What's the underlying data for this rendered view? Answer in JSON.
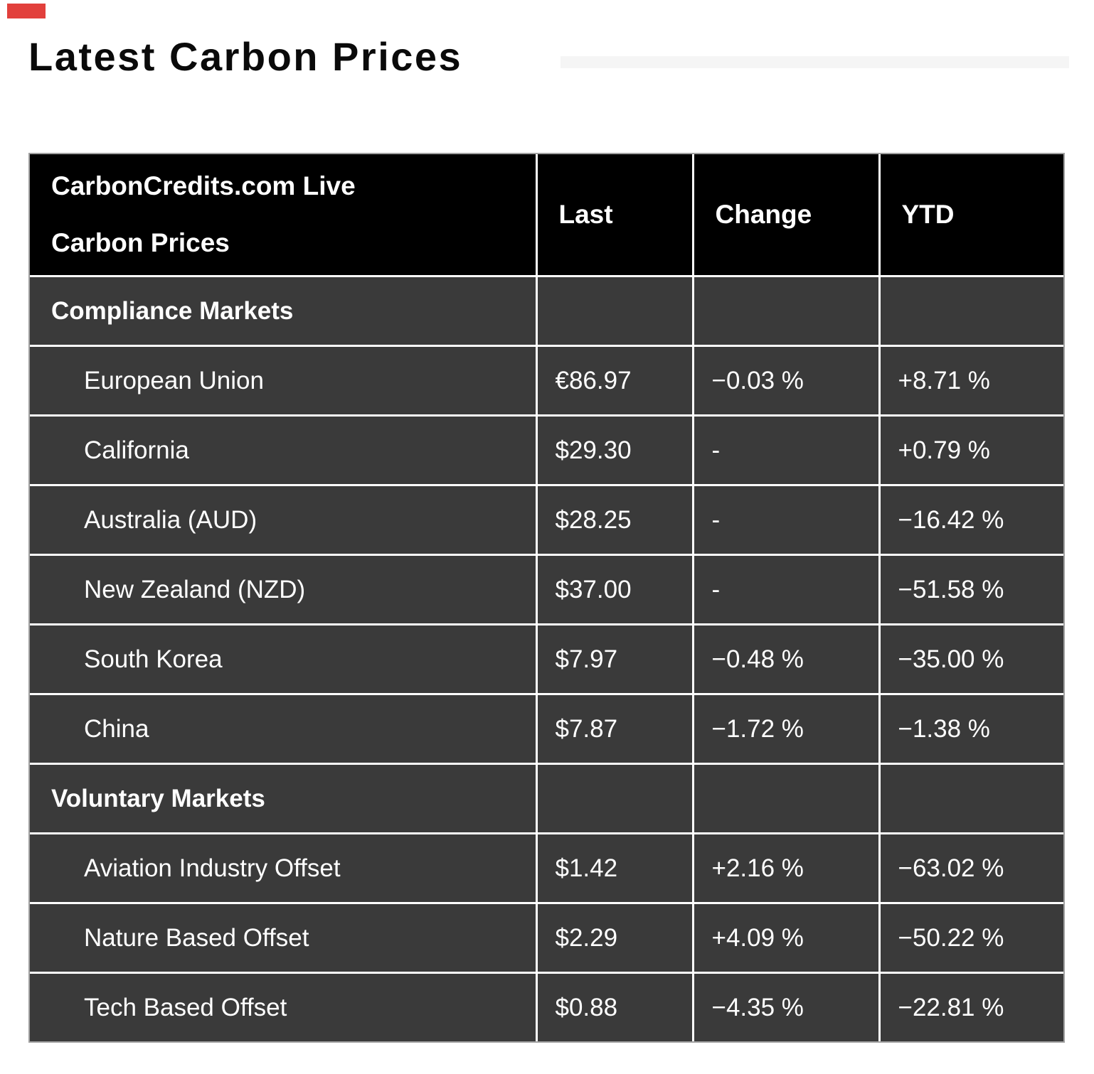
{
  "page": {
    "title": "Latest Carbon Prices",
    "marker_color": "#e2403c",
    "heading_bar_color": "#f5f5f5"
  },
  "table": {
    "header": {
      "market_label": "CarbonCredits.com Live Carbon Prices",
      "columns": [
        "Last",
        "Change",
        "YTD"
      ]
    },
    "colors": {
      "header_bg": "#000000",
      "row_bg": "#3a3a3a",
      "border": "#ffffff",
      "outer_border": "#a0a0a0",
      "text": "#ffffff",
      "up": "#2fb34a",
      "down": "#d32f2f"
    },
    "sections": [
      {
        "label": "Compliance Markets",
        "rows": [
          {
            "name": "European Union",
            "last": "€86.97",
            "change": "−0.03 %",
            "ytd": "+8.71 %"
          },
          {
            "name": "California",
            "last": "$29.30",
            "change": "-",
            "ytd": "+0.79 %"
          },
          {
            "name": "Australia (AUD)",
            "last": "$28.25",
            "change": "-",
            "ytd": "−16.42 %"
          },
          {
            "name": "New Zealand (NZD)",
            "last": "$37.00",
            "change": "-",
            "ytd": "−51.58 %"
          },
          {
            "name": "South Korea",
            "last": "$7.97",
            "change": "−0.48 %",
            "ytd": "−35.00 %"
          },
          {
            "name": "China",
            "last": "$7.87",
            "change": "−1.72 %",
            "ytd": "−1.38 %"
          }
        ]
      },
      {
        "label": "Voluntary Markets",
        "rows": [
          {
            "name": "Aviation Industry Offset",
            "last": "$1.42",
            "change": "+2.16 %",
            "ytd": "−63.02 %"
          },
          {
            "name": "Nature Based Offset",
            "last": "$2.29",
            "change": "+4.09 %",
            "ytd": "−50.22 %"
          },
          {
            "name": "Tech Based Offset",
            "last": "$0.88",
            "change": "−4.35 %",
            "ytd": "−22.81 %"
          }
        ]
      }
    ]
  },
  "chart_data": {
    "type": "table",
    "title": "Latest Carbon Prices",
    "columns": [
      "CarbonCredits.com Live Carbon Prices",
      "Last",
      "Change",
      "YTD"
    ],
    "sections": [
      {
        "section": "Compliance Markets",
        "rows": [
          {
            "market": "European Union",
            "last": 86.97,
            "currency": "EUR",
            "change_pct": -0.03,
            "ytd_pct": 8.71
          },
          {
            "market": "California",
            "last": 29.3,
            "currency": "USD",
            "change_pct": null,
            "ytd_pct": 0.79
          },
          {
            "market": "Australia (AUD)",
            "last": 28.25,
            "currency": "AUD",
            "change_pct": null,
            "ytd_pct": -16.42
          },
          {
            "market": "New Zealand (NZD)",
            "last": 37.0,
            "currency": "NZD",
            "change_pct": null,
            "ytd_pct": -51.58
          },
          {
            "market": "South Korea",
            "last": 7.97,
            "currency": "USD",
            "change_pct": -0.48,
            "ytd_pct": -35.0
          },
          {
            "market": "China",
            "last": 7.87,
            "currency": "USD",
            "change_pct": -1.72,
            "ytd_pct": -1.38
          }
        ]
      },
      {
        "section": "Voluntary Markets",
        "rows": [
          {
            "market": "Aviation Industry Offset",
            "last": 1.42,
            "currency": "USD",
            "change_pct": 2.16,
            "ytd_pct": -63.02
          },
          {
            "market": "Nature Based Offset",
            "last": 2.29,
            "currency": "USD",
            "change_pct": 4.09,
            "ytd_pct": -50.22
          },
          {
            "market": "Tech Based Offset",
            "last": 0.88,
            "currency": "USD",
            "change_pct": -4.35,
            "ytd_pct": -22.81
          }
        ]
      }
    ]
  }
}
